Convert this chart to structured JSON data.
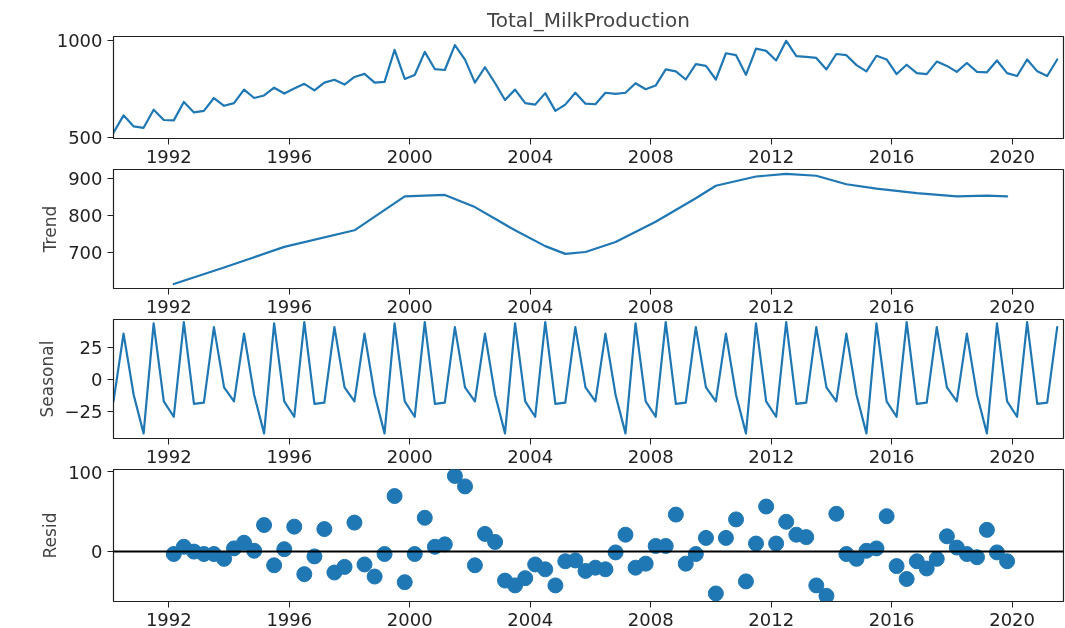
{
  "chart_data": [
    {
      "type": "line",
      "title": "Total_MilkProduction",
      "x": [
        "1990-03",
        "1990-07",
        "1990-11",
        "1991-03",
        "1991-07",
        "1991-11",
        "1992-03",
        "1992-07",
        "1992-11",
        "1993-03",
        "1993-07",
        "1993-11",
        "1994-03",
        "1994-07",
        "1994-11",
        "1995-03",
        "1995-07",
        "1995-11",
        "1996-03",
        "1996-07",
        "1996-11",
        "1997-03",
        "1997-07",
        "1997-11",
        "1998-03",
        "1998-07",
        "1998-11",
        "1999-03",
        "1999-07",
        "1999-11",
        "2000-03",
        "2000-07",
        "2000-11",
        "2001-03",
        "2001-07",
        "2001-11",
        "2002-03",
        "2002-07",
        "2002-11",
        "2003-03",
        "2003-07",
        "2003-11",
        "2004-03",
        "2004-07",
        "2004-11",
        "2005-03",
        "2005-07",
        "2005-11",
        "2006-03",
        "2006-07",
        "2006-11",
        "2007-03",
        "2007-07",
        "2007-11",
        "2008-03",
        "2008-07",
        "2008-11",
        "2009-03",
        "2009-07",
        "2009-11",
        "2010-03",
        "2010-07",
        "2010-11",
        "2011-03",
        "2011-07",
        "2011-11",
        "2012-03",
        "2012-07",
        "2012-11",
        "2013-03",
        "2013-07",
        "2013-11",
        "2014-03",
        "2014-07",
        "2014-11",
        "2015-03",
        "2015-07",
        "2015-11",
        "2016-03",
        "2016-07",
        "2016-11",
        "2017-03",
        "2017-07",
        "2017-11",
        "2018-03",
        "2018-07",
        "2018-11",
        "2019-03",
        "2019-07",
        "2019-11",
        "2020-03",
        "2020-07",
        "2020-11",
        "2021-03",
        "2021-07"
      ],
      "xlim": [
        "1990-03",
        "2021-09-15"
      ],
      "xticks": [
        "1992",
        "1996",
        "2000",
        "2004",
        "2008",
        "2012",
        "2016",
        "2020"
      ],
      "ylim": [
        496,
        1020
      ],
      "yticks": [
        500,
        1000
      ],
      "series": [
        {
          "color": "#1f77b4",
          "values": [
            526,
            615,
            558,
            551,
            644,
            591,
            589,
            684,
            630,
            638,
            704,
            664,
            678,
            747,
            704,
            717,
            757,
            727,
            753,
            777,
            743,
            783,
            798,
            773,
            812,
            828,
            783,
            787,
            951,
            802,
            822,
            941,
            852,
            848,
            976,
            901,
            783,
            862,
            780,
            694,
            747,
            678,
            670,
            729,
            638,
            670,
            731,
            675,
            672,
            731,
            725,
            731,
            780,
            749,
            768,
            851,
            841,
            799,
            878,
            869,
            799,
            934,
            924,
            823,
            958,
            946,
            897,
            998,
            919,
            915,
            910,
            851,
            930,
            924,
            873,
            841,
            921,
            902,
            827,
            875,
            832,
            827,
            891,
            869,
            838,
            884,
            838,
            836,
            897,
            832,
            817,
            902,
            841,
            817,
            902
          ]
        }
      ]
    },
    {
      "type": "line",
      "ylabel": "Trend",
      "x": [
        "1992-03",
        "1993-11",
        "1995-11",
        "1998-03",
        "1999-11",
        "2001-03",
        "2002-03",
        "2003-07",
        "2004-07",
        "2005-03",
        "2005-11",
        "2006-11",
        "2008-03",
        "2009-07",
        "2010-03",
        "2011-07",
        "2012-07",
        "2013-07",
        "2014-07",
        "2015-07",
        "2016-11",
        "2018-03",
        "2019-03",
        "2019-11"
      ],
      "xlim": [
        "1990-03",
        "2021-09-15"
      ],
      "xticks": [
        "1992",
        "1996",
        "2000",
        "2004",
        "2008",
        "2012",
        "2016",
        "2020"
      ],
      "ylim": [
        601,
        924
      ],
      "yticks": [
        700,
        800,
        900
      ],
      "series": [
        {
          "color": "#1f77b4",
          "values": [
            613,
            658,
            714,
            759,
            851,
            855,
            822,
            759,
            716,
            695,
            700,
            727,
            782,
            846,
            880,
            905,
            912,
            907,
            884,
            872,
            860,
            851,
            853,
            851
          ]
        }
      ]
    },
    {
      "type": "line",
      "ylabel": "Seasonal",
      "x": [
        "1990-03",
        "1990-07",
        "1990-11",
        "1991-03",
        "1991-07",
        "1991-11",
        "1992-03",
        "1992-07",
        "1992-11",
        "1993-03",
        "1993-07",
        "1993-11",
        "1994-03",
        "1994-07",
        "1994-11",
        "1995-03",
        "1995-07",
        "1995-11",
        "1996-03",
        "1996-07",
        "1996-11",
        "1997-03",
        "1997-07",
        "1997-11",
        "1998-03",
        "1998-07",
        "1998-11",
        "1999-03",
        "1999-07",
        "1999-11",
        "2000-03",
        "2000-07",
        "2000-11",
        "2001-03",
        "2001-07",
        "2001-11",
        "2002-03",
        "2002-07",
        "2002-11",
        "2003-03",
        "2003-07",
        "2003-11",
        "2004-03",
        "2004-07",
        "2004-11",
        "2005-03",
        "2005-07",
        "2005-11",
        "2006-03",
        "2006-07",
        "2006-11",
        "2007-03",
        "2007-07",
        "2007-11",
        "2008-03",
        "2008-07",
        "2008-11",
        "2009-03",
        "2009-07",
        "2009-11",
        "2010-03",
        "2010-07",
        "2010-11",
        "2011-03",
        "2011-07",
        "2011-11",
        "2012-03",
        "2012-07",
        "2012-11",
        "2013-03",
        "2013-07",
        "2013-11",
        "2014-03",
        "2014-07",
        "2014-11",
        "2015-03",
        "2015-07",
        "2015-11",
        "2016-03",
        "2016-07",
        "2016-11",
        "2017-03",
        "2017-07",
        "2017-11",
        "2018-03",
        "2018-07",
        "2018-11",
        "2019-03",
        "2019-07",
        "2019-11",
        "2020-03",
        "2020-07",
        "2020-11",
        "2021-03",
        "2021-07"
      ],
      "xlim": [
        "1990-03",
        "2021-09-15"
      ],
      "xticks": [
        "1992",
        "1996",
        "2000",
        "2004",
        "2008",
        "2012",
        "2016",
        "2020"
      ],
      "ylim": [
        -46,
        47
      ],
      "yticks": [
        {
          "value": -25,
          "label": "−25"
        },
        0,
        25
      ],
      "series": [
        {
          "color": "#1f77b4",
          "values": [
            -17,
            36,
            -12,
            -42,
            44,
            -17,
            -29,
            45,
            -19,
            -18,
            41,
            -6,
            -17,
            36,
            -12,
            -42,
            44,
            -17,
            -29,
            45,
            -19,
            -18,
            41,
            -6,
            -17,
            36,
            -12,
            -42,
            44,
            -17,
            -29,
            45,
            -19,
            -18,
            41,
            -6,
            -17,
            36,
            -12,
            -42,
            44,
            -17,
            -29,
            45,
            -19,
            -18,
            41,
            -6,
            -17,
            36,
            -12,
            -42,
            44,
            -17,
            -29,
            45,
            -19,
            -18,
            41,
            -6,
            -17,
            36,
            -12,
            -42,
            44,
            -17,
            -29,
            45,
            -19,
            -18,
            41,
            -6,
            -17,
            36,
            -12,
            -42,
            44,
            -17,
            -29,
            45,
            -19,
            -18,
            41,
            -6,
            -17,
            36,
            -12,
            -42,
            44,
            -17,
            -29,
            45,
            -19,
            -18,
            41
          ]
        }
      ]
    },
    {
      "type": "scatter",
      "ylabel": "Resid",
      "marker": "circle",
      "x": [
        "1992-03",
        "1992-07",
        "1992-11",
        "1993-03",
        "1993-07",
        "1993-11",
        "1994-03",
        "1994-07",
        "1994-11",
        "1995-03",
        "1995-07",
        "1995-11",
        "1996-03",
        "1996-07",
        "1996-11",
        "1997-03",
        "1997-07",
        "1997-11",
        "1998-03",
        "1998-07",
        "1998-11",
        "1999-03",
        "1999-07",
        "1999-11",
        "2000-03",
        "2000-07",
        "2000-11",
        "2001-03",
        "2001-07",
        "2001-11",
        "2002-03",
        "2002-07",
        "2002-11",
        "2003-03",
        "2003-07",
        "2003-11",
        "2004-03",
        "2004-07",
        "2004-11",
        "2005-03",
        "2005-07",
        "2005-11",
        "2006-03",
        "2006-07",
        "2006-11",
        "2007-03",
        "2007-07",
        "2007-11",
        "2008-03",
        "2008-07",
        "2008-11",
        "2009-03",
        "2009-07",
        "2009-11",
        "2010-03",
        "2010-07",
        "2010-11",
        "2011-03",
        "2011-07",
        "2011-11",
        "2012-03",
        "2012-07",
        "2012-11",
        "2013-03",
        "2013-07",
        "2013-11",
        "2014-03",
        "2014-07",
        "2014-11",
        "2015-03",
        "2015-07",
        "2015-11",
        "2016-03",
        "2016-07",
        "2016-11",
        "2017-03",
        "2017-07",
        "2017-11",
        "2018-03",
        "2018-07",
        "2018-11",
        "2019-03",
        "2019-07",
        "2019-11"
      ],
      "xlim": [
        "1990-03",
        "2021-09-15"
      ],
      "xticks": [
        "1992",
        "1996",
        "2000",
        "2004",
        "2008",
        "2012",
        "2016",
        "2020"
      ],
      "ylim": [
        -62,
        102
      ],
      "yticks": [
        0,
        100
      ],
      "ref_lines": [
        {
          "axis": "y",
          "value": 0,
          "color": "#000000"
        }
      ],
      "series": [
        {
          "color": "#1f77b4",
          "values": [
            -3,
            6,
            0,
            -3,
            -3,
            -9,
            4,
            11,
            1,
            33,
            -17,
            3,
            31,
            -28,
            -6,
            28,
            -26,
            -19,
            36,
            -16,
            -31,
            -3,
            69,
            -38,
            -3,
            42,
            6,
            9,
            94,
            81,
            -17,
            22,
            12,
            -36,
            -42,
            -33,
            -16,
            -22,
            -42,
            -12,
            -11,
            -24,
            -20,
            -22,
            -1,
            21,
            -20,
            -15,
            7,
            7,
            46,
            -15,
            -3,
            17,
            -52,
            17,
            40,
            -37,
            10,
            56,
            10,
            37,
            21,
            18,
            -42,
            -55,
            47,
            -3,
            -9,
            1,
            4,
            44,
            -18,
            -34,
            -12,
            -21,
            -9,
            19,
            5,
            -3,
            -7,
            27,
            -1,
            -12
          ]
        }
      ]
    }
  ]
}
